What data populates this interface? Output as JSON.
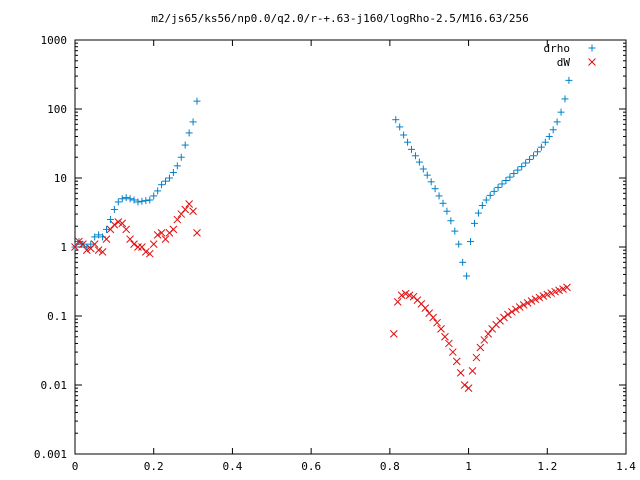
{
  "chart_data": {
    "type": "scatter",
    "title": "m2/js65/ks56/np0.0/q2.0/r-+.63-j160/logRho-2.5/M16.63/256",
    "xlabel": "",
    "ylabel": "",
    "xlim": [
      0,
      1.4
    ],
    "ylim": [
      0.001,
      1000
    ],
    "yscale": "log",
    "grid": false,
    "legend_position": "top-right",
    "x_ticks": [
      0,
      0.2,
      0.4,
      0.6,
      0.8,
      1,
      1.2,
      1.4
    ],
    "x_tick_labels": [
      "0",
      "0.2",
      "0.4",
      "0.6",
      "0.8",
      "1",
      "1.2",
      "1.4"
    ],
    "y_ticks": [
      0.001,
      0.01,
      0.1,
      1,
      10,
      100,
      1000
    ],
    "y_tick_labels": [
      "0.001",
      "0.01",
      "0.1",
      "1",
      "10",
      "100",
      "1000"
    ],
    "series": [
      {
        "name": "drho",
        "marker": "plus",
        "color": "#0080c8",
        "x": [
          0.0,
          0.01,
          0.02,
          0.03,
          0.04,
          0.05,
          0.06,
          0.07,
          0.08,
          0.09,
          0.1,
          0.11,
          0.12,
          0.13,
          0.14,
          0.15,
          0.16,
          0.17,
          0.18,
          0.19,
          0.2,
          0.21,
          0.22,
          0.23,
          0.24,
          0.25,
          0.26,
          0.27,
          0.28,
          0.29,
          0.3,
          0.31,
          0.815,
          0.825,
          0.835,
          0.845,
          0.855,
          0.865,
          0.875,
          0.885,
          0.895,
          0.905,
          0.915,
          0.925,
          0.935,
          0.945,
          0.955,
          0.965,
          0.975,
          0.985,
          0.995,
          1.005,
          1.015,
          1.025,
          1.035,
          1.045,
          1.055,
          1.065,
          1.075,
          1.085,
          1.095,
          1.105,
          1.115,
          1.125,
          1.135,
          1.145,
          1.155,
          1.165,
          1.175,
          1.185,
          1.195,
          1.205,
          1.215,
          1.225,
          1.235,
          1.245,
          1.255
        ],
        "y": [
          1.0,
          1.2,
          1.1,
          1.0,
          1.1,
          1.4,
          1.5,
          1.4,
          1.8,
          2.5,
          3.5,
          4.5,
          5.0,
          5.2,
          5.0,
          4.8,
          4.5,
          4.6,
          4.7,
          4.8,
          5.5,
          6.5,
          8.0,
          9.0,
          10.0,
          12.0,
          15.0,
          20.0,
          30.0,
          45.0,
          65.0,
          130.0,
          70.0,
          55.0,
          42.0,
          33.0,
          26.0,
          21.0,
          17.0,
          13.5,
          11.0,
          8.8,
          7.0,
          5.5,
          4.3,
          3.3,
          2.4,
          1.7,
          1.1,
          0.6,
          0.38,
          1.2,
          2.2,
          3.1,
          4.0,
          4.8,
          5.6,
          6.4,
          7.3,
          8.2,
          9.2,
          10.3,
          11.6,
          13.0,
          14.6,
          16.5,
          18.6,
          21.0,
          24.0,
          28.0,
          33.0,
          40.0,
          50.0,
          65.0,
          90.0,
          140.0,
          260.0
        ]
      },
      {
        "name": "dW",
        "marker": "cross",
        "color": "#e01010",
        "x": [
          0.0,
          0.01,
          0.02,
          0.03,
          0.04,
          0.05,
          0.06,
          0.07,
          0.08,
          0.09,
          0.1,
          0.11,
          0.12,
          0.13,
          0.14,
          0.15,
          0.16,
          0.17,
          0.18,
          0.19,
          0.2,
          0.21,
          0.22,
          0.23,
          0.24,
          0.25,
          0.26,
          0.27,
          0.28,
          0.29,
          0.3,
          0.31,
          0.81,
          0.82,
          0.83,
          0.84,
          0.85,
          0.86,
          0.87,
          0.88,
          0.89,
          0.9,
          0.91,
          0.92,
          0.93,
          0.94,
          0.95,
          0.96,
          0.97,
          0.98,
          0.99,
          1.0,
          1.01,
          1.02,
          1.03,
          1.04,
          1.05,
          1.06,
          1.07,
          1.08,
          1.09,
          1.1,
          1.11,
          1.12,
          1.13,
          1.14,
          1.15,
          1.16,
          1.17,
          1.18,
          1.19,
          1.2,
          1.21,
          1.22,
          1.23,
          1.24,
          1.25
        ],
        "y": [
          1.0,
          1.2,
          1.1,
          0.9,
          0.95,
          1.1,
          0.9,
          0.85,
          1.3,
          1.8,
          2.1,
          2.3,
          2.2,
          1.8,
          1.3,
          1.1,
          1.0,
          1.0,
          0.85,
          0.8,
          1.1,
          1.5,
          1.6,
          1.3,
          1.6,
          1.8,
          2.5,
          3.0,
          3.5,
          4.2,
          3.3,
          1.6,
          0.055,
          0.16,
          0.2,
          0.21,
          0.2,
          0.19,
          0.17,
          0.15,
          0.13,
          0.11,
          0.095,
          0.08,
          0.065,
          0.05,
          0.04,
          0.03,
          0.022,
          0.015,
          0.01,
          0.009,
          0.016,
          0.025,
          0.035,
          0.045,
          0.055,
          0.065,
          0.075,
          0.085,
          0.095,
          0.105,
          0.115,
          0.125,
          0.135,
          0.145,
          0.155,
          0.165,
          0.175,
          0.185,
          0.195,
          0.205,
          0.215,
          0.225,
          0.235,
          0.245,
          0.26
        ]
      }
    ]
  }
}
